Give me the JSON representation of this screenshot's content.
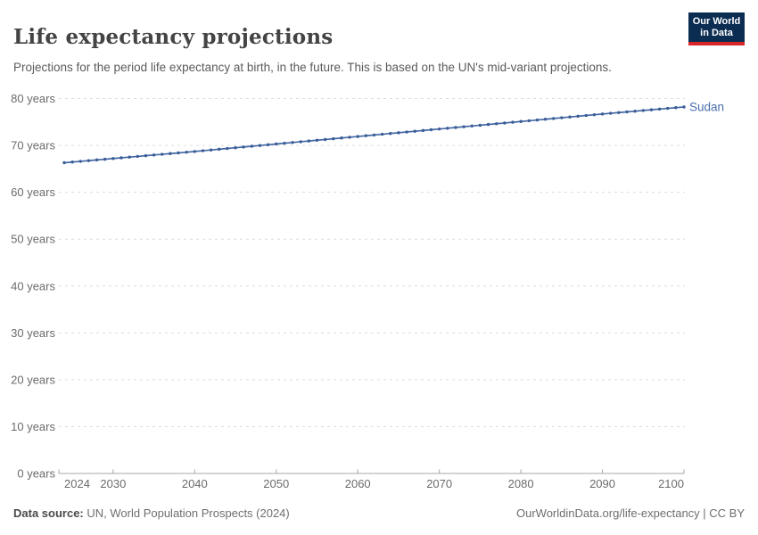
{
  "header": {
    "title": "Life expectancy projections",
    "subtitle": "Projections for the period life expectancy at birth, in the future. This is based on the UN's mid-variant projections."
  },
  "logo": {
    "line1": "Our World",
    "line2": "in Data"
  },
  "footer": {
    "source_label": "Data source:",
    "source_value": "UN, World Population Prospects (2024)",
    "credit": "OurWorldinData.org/life-expectancy | CC BY"
  },
  "colors": {
    "line_blue": "#4569a6",
    "marker_blue": "#3a5c95",
    "entity_label_blue": "#4a6fae",
    "logo_navy": "#0c2d52",
    "logo_red": "#d8252a",
    "gridline_gray": "#dcdcdc",
    "axis_gray": "#a7a7a7",
    "tick_text_gray": "#6b6b6b"
  },
  "chart_data": {
    "type": "line",
    "title": "Life expectancy projections",
    "unit_suffix": " years",
    "grid": "horizontal-dashed",
    "legend_position": "end-of-line-label",
    "markers": true,
    "xlim": [
      2024,
      2100
    ],
    "ylim": [
      0,
      80
    ],
    "xticks": [
      2024,
      2030,
      2040,
      2050,
      2060,
      2070,
      2080,
      2090,
      2100
    ],
    "yticks": [
      0,
      10,
      20,
      30,
      40,
      50,
      60,
      70,
      80
    ],
    "x": [
      2024,
      2025,
      2026,
      2027,
      2028,
      2029,
      2030,
      2031,
      2032,
      2033,
      2034,
      2035,
      2036,
      2037,
      2038,
      2039,
      2040,
      2041,
      2042,
      2043,
      2044,
      2045,
      2046,
      2047,
      2048,
      2049,
      2050,
      2051,
      2052,
      2053,
      2054,
      2055,
      2056,
      2057,
      2058,
      2059,
      2060,
      2061,
      2062,
      2063,
      2064,
      2065,
      2066,
      2067,
      2068,
      2069,
      2070,
      2071,
      2072,
      2073,
      2074,
      2075,
      2076,
      2077,
      2078,
      2079,
      2080,
      2081,
      2082,
      2083,
      2084,
      2085,
      2086,
      2087,
      2088,
      2089,
      2090,
      2091,
      2092,
      2093,
      2094,
      2095,
      2096,
      2097,
      2098,
      2099,
      2100
    ],
    "series": [
      {
        "name": "Sudan",
        "values": [
          66.3,
          66.45,
          66.6,
          66.75,
          66.9,
          67.05,
          67.2,
          67.35,
          67.5,
          67.65,
          67.8,
          67.95,
          68.1,
          68.25,
          68.4,
          68.55,
          68.7,
          68.86,
          69.02,
          69.18,
          69.34,
          69.5,
          69.66,
          69.82,
          69.98,
          70.14,
          70.3,
          70.46,
          70.62,
          70.78,
          70.94,
          71.1,
          71.26,
          71.42,
          71.58,
          71.74,
          71.9,
          72.06,
          72.22,
          72.38,
          72.54,
          72.7,
          72.86,
          73.02,
          73.18,
          73.34,
          73.5,
          73.66,
          73.82,
          73.98,
          74.14,
          74.3,
          74.46,
          74.62,
          74.78,
          74.94,
          75.1,
          75.26,
          75.42,
          75.58,
          75.74,
          75.9,
          76.06,
          76.22,
          76.38,
          76.54,
          76.7,
          76.85,
          77.0,
          77.15,
          77.3,
          77.45,
          77.6,
          77.75,
          77.9,
          78.05,
          78.2
        ]
      }
    ]
  }
}
